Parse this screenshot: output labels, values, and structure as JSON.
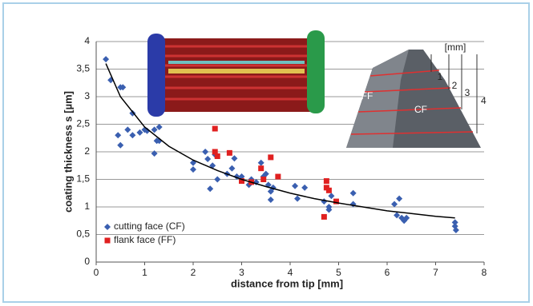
{
  "chart_data": {
    "type": "scatter",
    "x_label": "distance from tip [mm]",
    "y_label": "coating thickness s [µm]",
    "xlim": [
      0,
      8
    ],
    "xticks": [
      0,
      1,
      2,
      3,
      4,
      5,
      6,
      7,
      8
    ],
    "ylim": [
      0,
      4
    ],
    "yticks": [
      0,
      {
        "value": 0.5,
        "label": "0,5"
      },
      1,
      {
        "value": 1.5,
        "label": "1,5"
      },
      2,
      {
        "value": 2.5,
        "label": "2,5"
      },
      3,
      {
        "value": 3.5,
        "label": "3,5"
      },
      4
    ],
    "grid": true,
    "legend": "lower left",
    "series": [
      {
        "name": "cutting face (CF)",
        "color": "#3a5fb0",
        "marker": "diamond",
        "x": [
          0.2,
          0.3,
          0.45,
          0.5,
          0.5,
          0.55,
          0.65,
          0.75,
          0.75,
          0.9,
          1.0,
          1.05,
          1.2,
          1.2,
          1.25,
          1.3,
          1.3,
          2.0,
          2.0,
          2.25,
          2.3,
          2.35,
          2.4,
          2.45,
          2.5,
          2.7,
          2.8,
          2.85,
          2.9,
          3.0,
          3.15,
          3.2,
          3.3,
          3.4,
          3.45,
          3.5,
          3.55,
          3.6,
          3.6,
          3.65,
          4.1,
          4.15,
          4.3,
          4.7,
          4.8,
          4.8,
          4.85,
          5.3,
          5.3,
          6.15,
          6.2,
          6.25,
          6.3,
          6.35,
          6.4,
          7.4,
          7.4,
          7.42
        ],
        "values": [
          3.68,
          3.3,
          2.3,
          2.12,
          3.17,
          3.17,
          2.4,
          2.3,
          2.7,
          2.35,
          2.4,
          2.38,
          2.4,
          1.97,
          2.2,
          2.45,
          2.2,
          1.8,
          1.68,
          2.0,
          1.87,
          1.33,
          1.75,
          1.95,
          1.5,
          1.6,
          1.7,
          1.88,
          1.55,
          1.55,
          1.4,
          1.5,
          1.45,
          1.8,
          1.55,
          1.6,
          1.4,
          1.28,
          1.13,
          1.35,
          1.38,
          1.15,
          1.35,
          1.1,
          0.95,
          1.0,
          1.2,
          1.25,
          1.05,
          1.05,
          0.85,
          1.15,
          0.8,
          0.75,
          0.8,
          0.72,
          0.65,
          0.58
        ]
      },
      {
        "name": "flank face (FF)",
        "color": "#e02020",
        "marker": "square",
        "x": [
          2.45,
          2.45,
          2.5,
          2.75,
          3.0,
          3.2,
          3.4,
          3.45,
          3.6,
          3.75,
          4.7,
          4.75,
          4.75,
          4.8,
          4.95
        ],
        "values": [
          2.42,
          2.0,
          1.92,
          1.98,
          1.47,
          1.45,
          1.7,
          1.5,
          1.9,
          1.55,
          0.82,
          1.47,
          1.35,
          1.3,
          1.1
        ]
      }
    ],
    "trendline": {
      "color": "#000000",
      "x": [
        0.2,
        0.5,
        1,
        1.5,
        2,
        2.5,
        3,
        3.5,
        4,
        4.5,
        5,
        5.5,
        6,
        6.5,
        7,
        7.4
      ],
      "values": [
        3.6,
        3.0,
        2.45,
        2.1,
        1.85,
        1.66,
        1.5,
        1.37,
        1.25,
        1.15,
        1.07,
        1.0,
        0.93,
        0.88,
        0.83,
        0.8
      ]
    },
    "inset": {
      "unit": "[mm]",
      "depths": [
        "1",
        "2",
        "3",
        "4"
      ],
      "faces": [
        "FF",
        "CF"
      ]
    }
  }
}
